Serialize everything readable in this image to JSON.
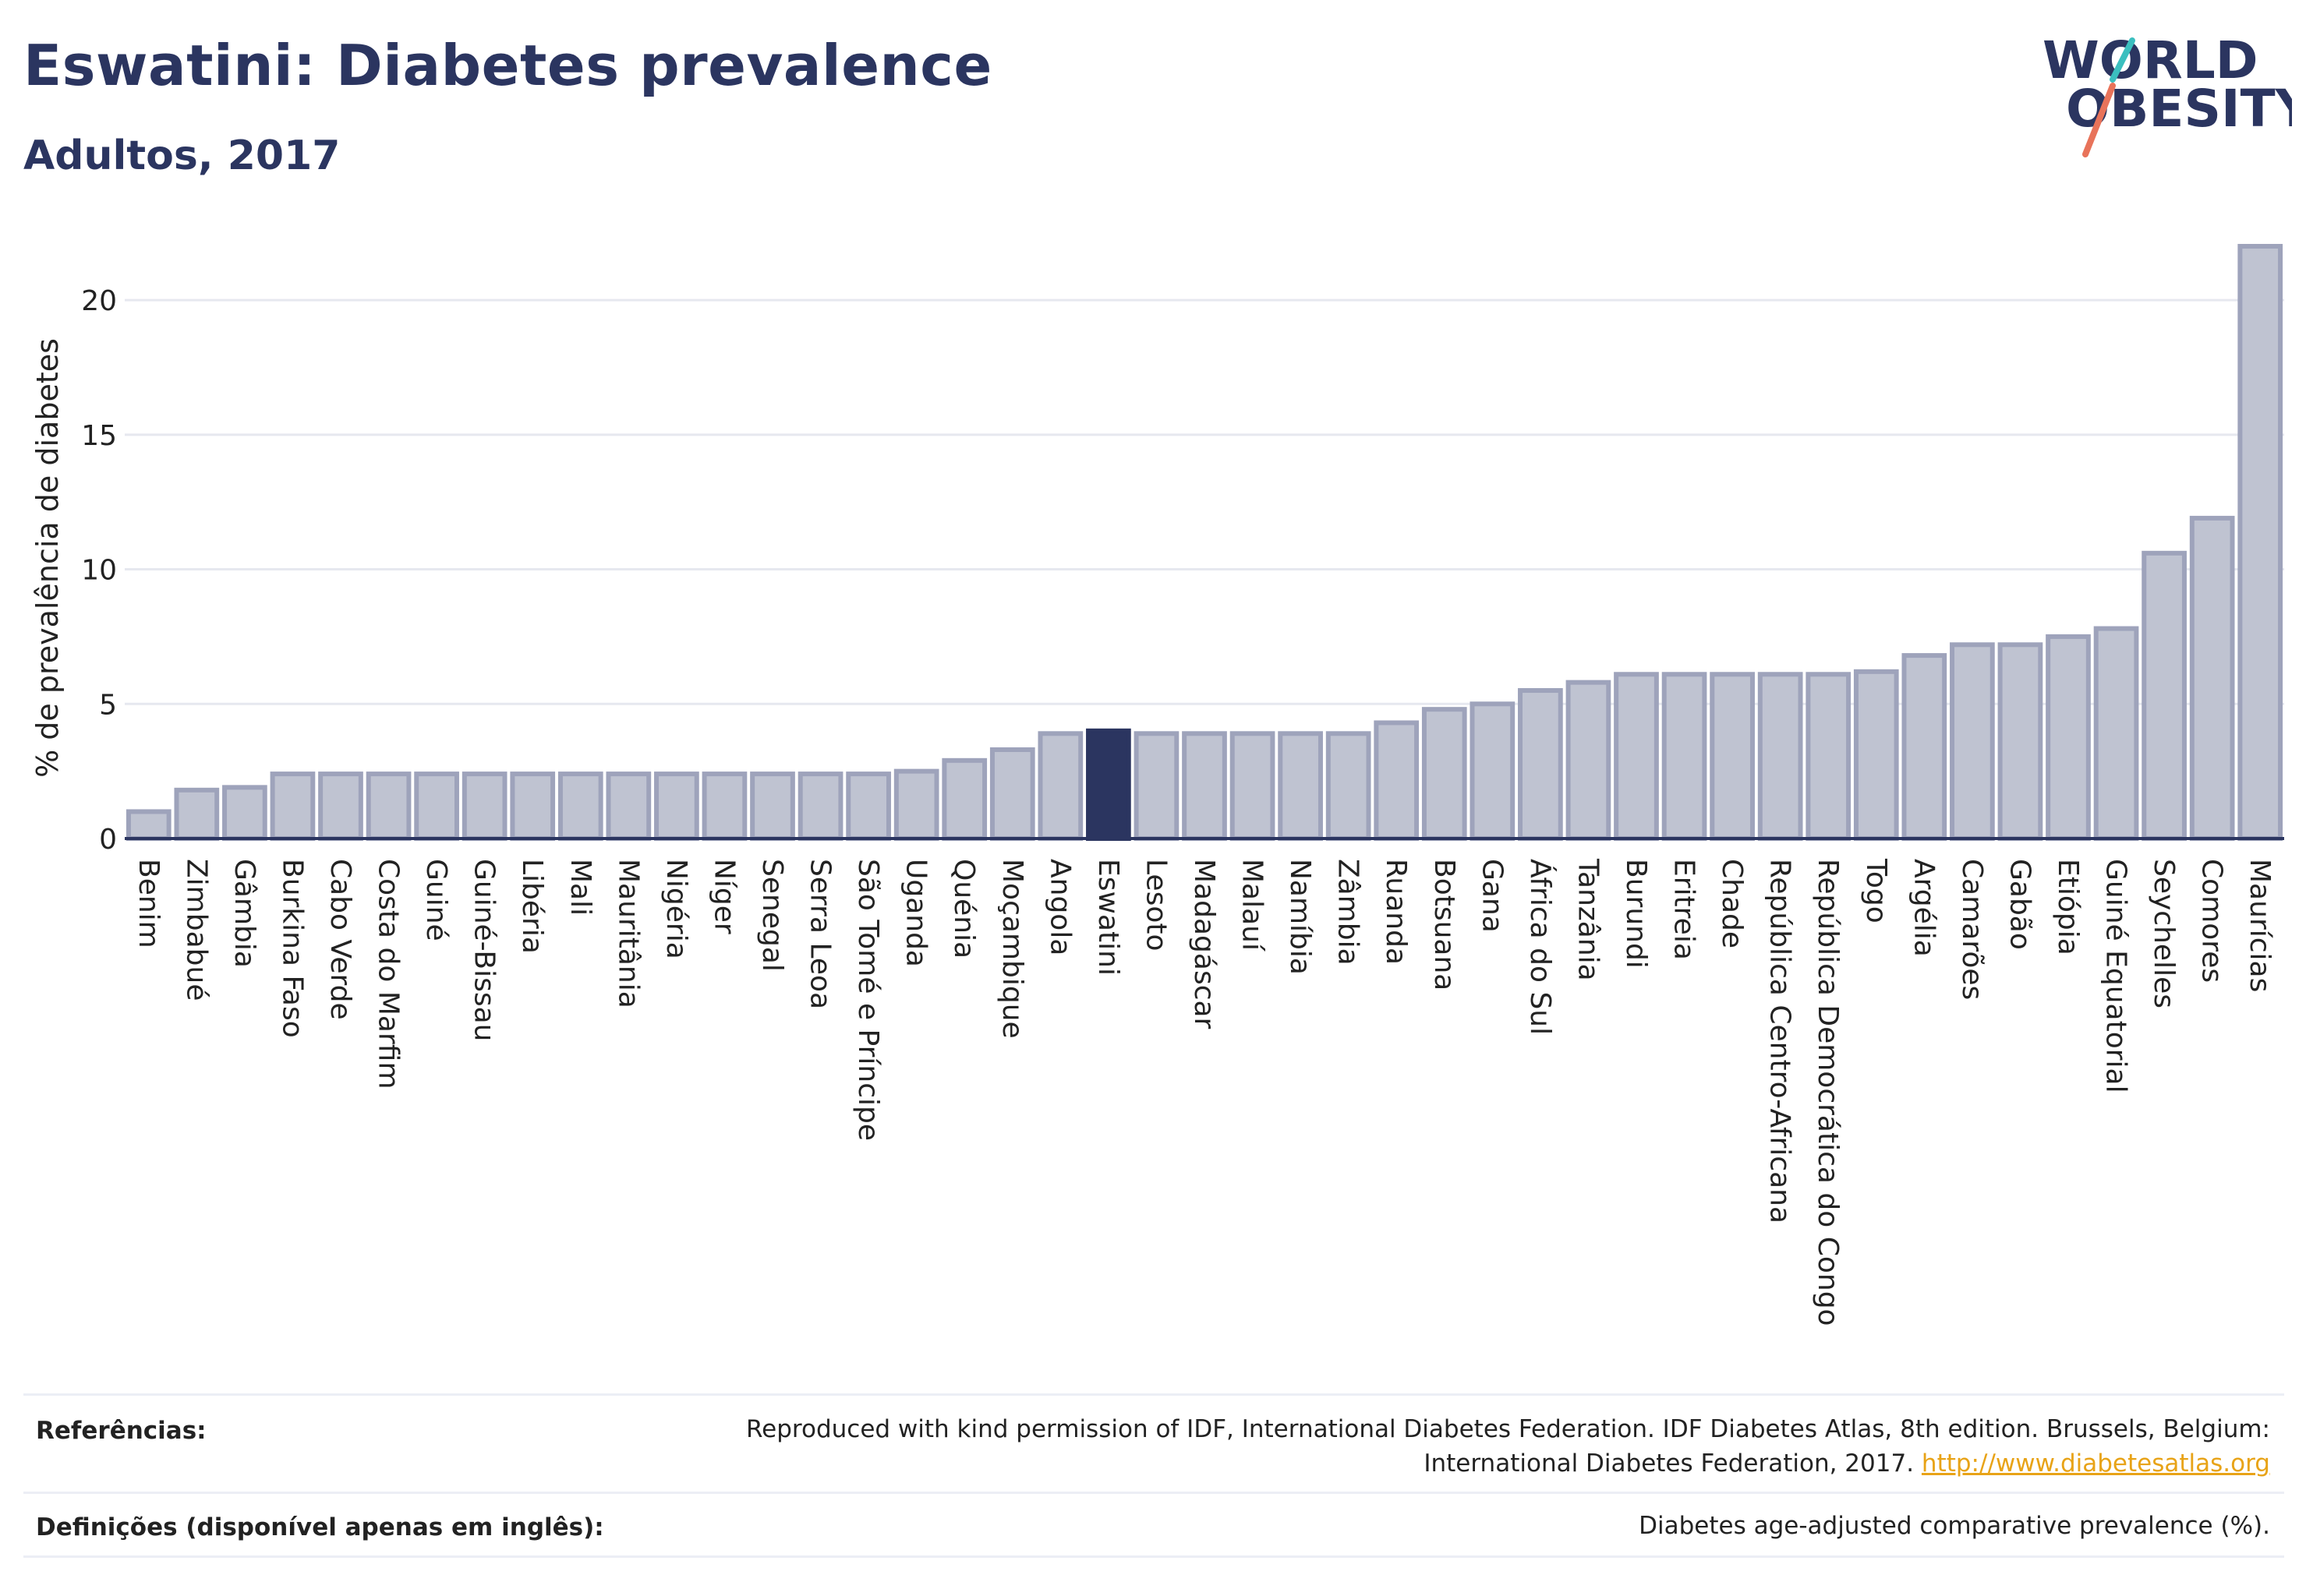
{
  "header": {
    "title": "Eswatini: Diabetes prevalence",
    "subtitle": "Adultos, 2017"
  },
  "logo": {
    "line1": "WORLD",
    "line2": "OBESITY"
  },
  "colors": {
    "bar_fill": "#bfc3d1",
    "bar_stroke": "#9ea3bb",
    "highlight": "#2b3560",
    "grid": "#e6e8ef",
    "axis": "#2b3560",
    "logo_teal": "#3bbfbf",
    "logo_coral": "#e8735a",
    "link": "#e8a317"
  },
  "chart_data": {
    "type": "bar",
    "title": "Eswatini: Diabetes prevalence",
    "subtitle": "Adultos, 2017",
    "xlabel": "",
    "ylabel": "% de prevalência de diabetes",
    "ylim": [
      0,
      22
    ],
    "yticks": [
      0,
      5,
      10,
      15,
      20
    ],
    "grid": true,
    "legend": "none",
    "highlight": "Eswatini",
    "categories": [
      "Benim",
      "Zimbabué",
      "Gâmbia",
      "Burkina Faso",
      "Cabo Verde",
      "Costa do Marfim",
      "Guiné",
      "Guiné-Bissau",
      "Libéria",
      "Mali",
      "Mauritânia",
      "Nigéria",
      "Níger",
      "Senegal",
      "Serra Leoa",
      "São Tomé e Príncipe",
      "Uganda",
      "Quénia",
      "Moçambique",
      "Angola",
      "Eswatini",
      "Lesoto",
      "Madagáscar",
      "Malauí",
      "Namíbia",
      "Zâmbia",
      "Ruanda",
      "Botsuana",
      "Gana",
      "África do Sul",
      "Tanzânia",
      "Burundi",
      "Eritreia",
      "Chade",
      "República Centro-Africana",
      "República Democrática do Congo",
      "Togo",
      "Argélia",
      "Camarões",
      "Gabão",
      "Etiópia",
      "Guiné Equatorial",
      "Seychelles",
      "Comores",
      "Maurícias"
    ],
    "values": [
      1.0,
      1.8,
      1.9,
      2.4,
      2.4,
      2.4,
      2.4,
      2.4,
      2.4,
      2.4,
      2.4,
      2.4,
      2.4,
      2.4,
      2.4,
      2.4,
      2.5,
      2.9,
      3.3,
      3.9,
      4.0,
      3.9,
      3.9,
      3.9,
      3.9,
      3.9,
      4.3,
      4.8,
      5.0,
      5.5,
      5.8,
      6.1,
      6.1,
      6.1,
      6.1,
      6.1,
      6.2,
      6.8,
      7.2,
      7.2,
      7.5,
      7.8,
      10.6,
      11.9,
      22.0
    ]
  },
  "footer": {
    "references_label": "Referências:",
    "references_line1": "Reproduced with kind permission of IDF, International Diabetes Federation. IDF Diabetes Atlas, 8th edition. Brussels, Belgium:",
    "references_line2": "International Diabetes Federation, 2017.",
    "references_link": "http://www.diabetesatlas.org",
    "definitions_label": "Definições (disponível apenas em inglês):",
    "definitions_text": "Diabetes age-adjusted comparative prevalence (%)."
  }
}
